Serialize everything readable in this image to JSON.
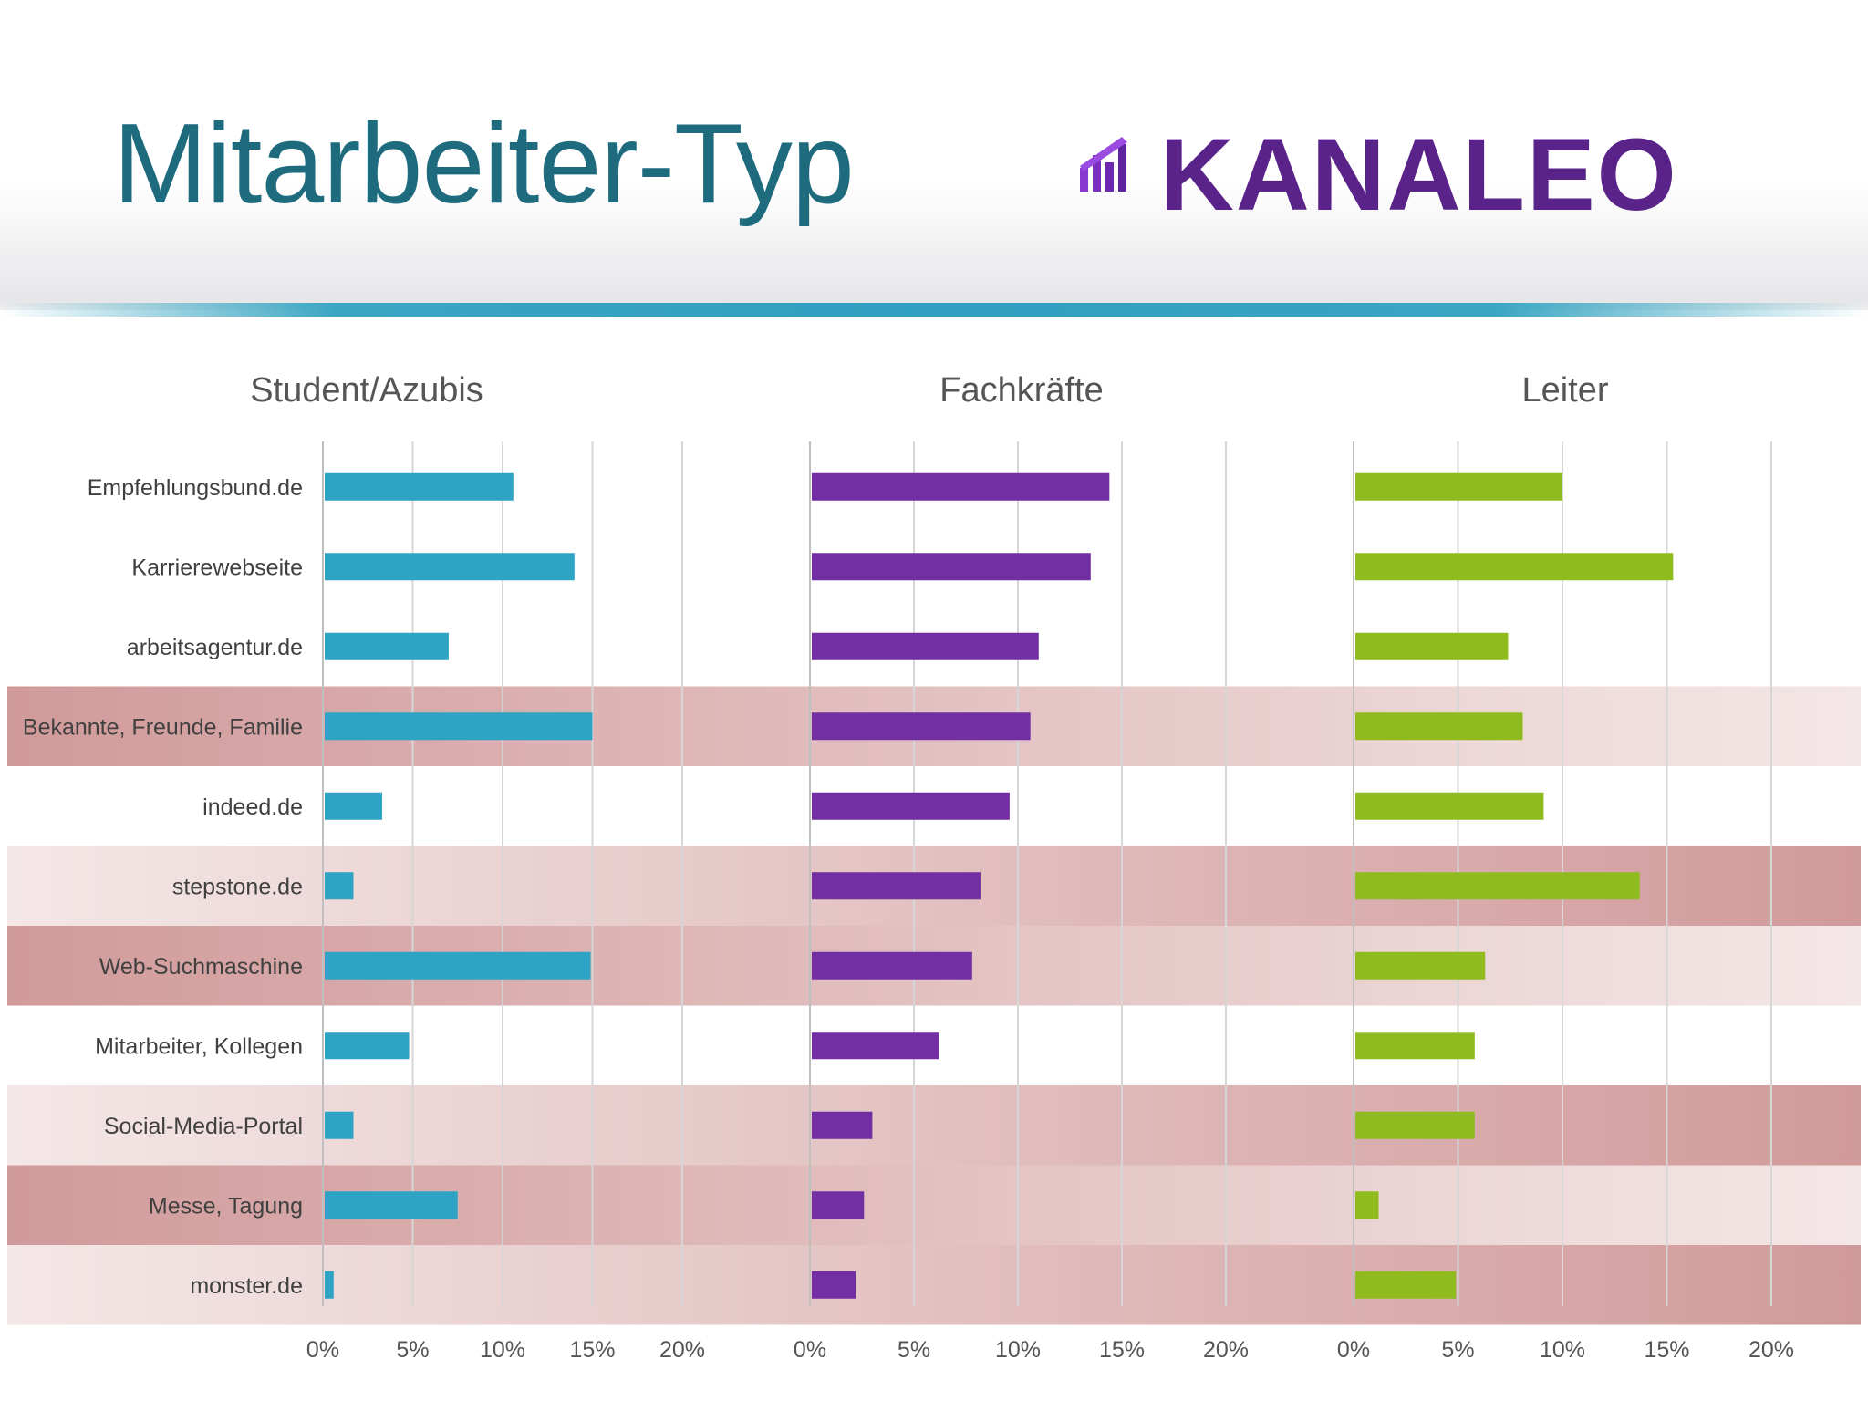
{
  "header": {
    "title": "Mitarbeiter-Typ",
    "logo_text": "KANALEO",
    "logo_color": "#5a2389",
    "accent_color": "#2e9fbf"
  },
  "chart_data": {
    "type": "bar",
    "orientation": "horizontal",
    "categories": [
      "Empfehlungsbund.de",
      "Karrierewebseite",
      "arbeitsagentur.de",
      "Bekannte, Freunde, Familie",
      "indeed.de",
      "stepstone.de",
      "Web-Suchmaschine",
      "Mitarbeiter, Kollegen",
      "Social-Media-Portal",
      "Messe, Tagung",
      "monster.de"
    ],
    "xlim": [
      0,
      20
    ],
    "x_ticks": [
      "0%",
      "5%",
      "10%",
      "15%",
      "20%"
    ],
    "grid": true,
    "series": [
      {
        "name": "Student/Azubis",
        "color": "#2fa3c4",
        "values": [
          10.6,
          14.0,
          7.0,
          15.0,
          3.3,
          1.7,
          14.9,
          4.8,
          1.7,
          7.5,
          0.6
        ]
      },
      {
        "name": "Fachkräfte",
        "color": "#722fa3",
        "values": [
          14.4,
          13.5,
          11.0,
          10.6,
          9.6,
          8.2,
          7.8,
          6.2,
          3.0,
          2.6,
          2.2
        ]
      },
      {
        "name": "Leiter",
        "color": "#8fbb1f",
        "values": [
          10.0,
          15.3,
          7.4,
          8.1,
          9.1,
          13.7,
          6.3,
          5.8,
          5.8,
          1.2,
          4.9
        ]
      }
    ],
    "row_highlights": [
      {
        "category": "Bekannte, Freunde, Familie",
        "color": "#c98888",
        "fade": "right"
      },
      {
        "category": "stepstone.de",
        "color": "#c98888",
        "fade": "left"
      },
      {
        "category": "Web-Suchmaschine",
        "color": "#c98888",
        "fade": "right"
      },
      {
        "category": "Social-Media-Portal",
        "color": "#c98888",
        "fade": "left"
      },
      {
        "category": "Messe, Tagung",
        "color": "#c98888",
        "fade": "right"
      },
      {
        "category": "monster.de",
        "color": "#c98888",
        "fade": "left"
      }
    ]
  }
}
